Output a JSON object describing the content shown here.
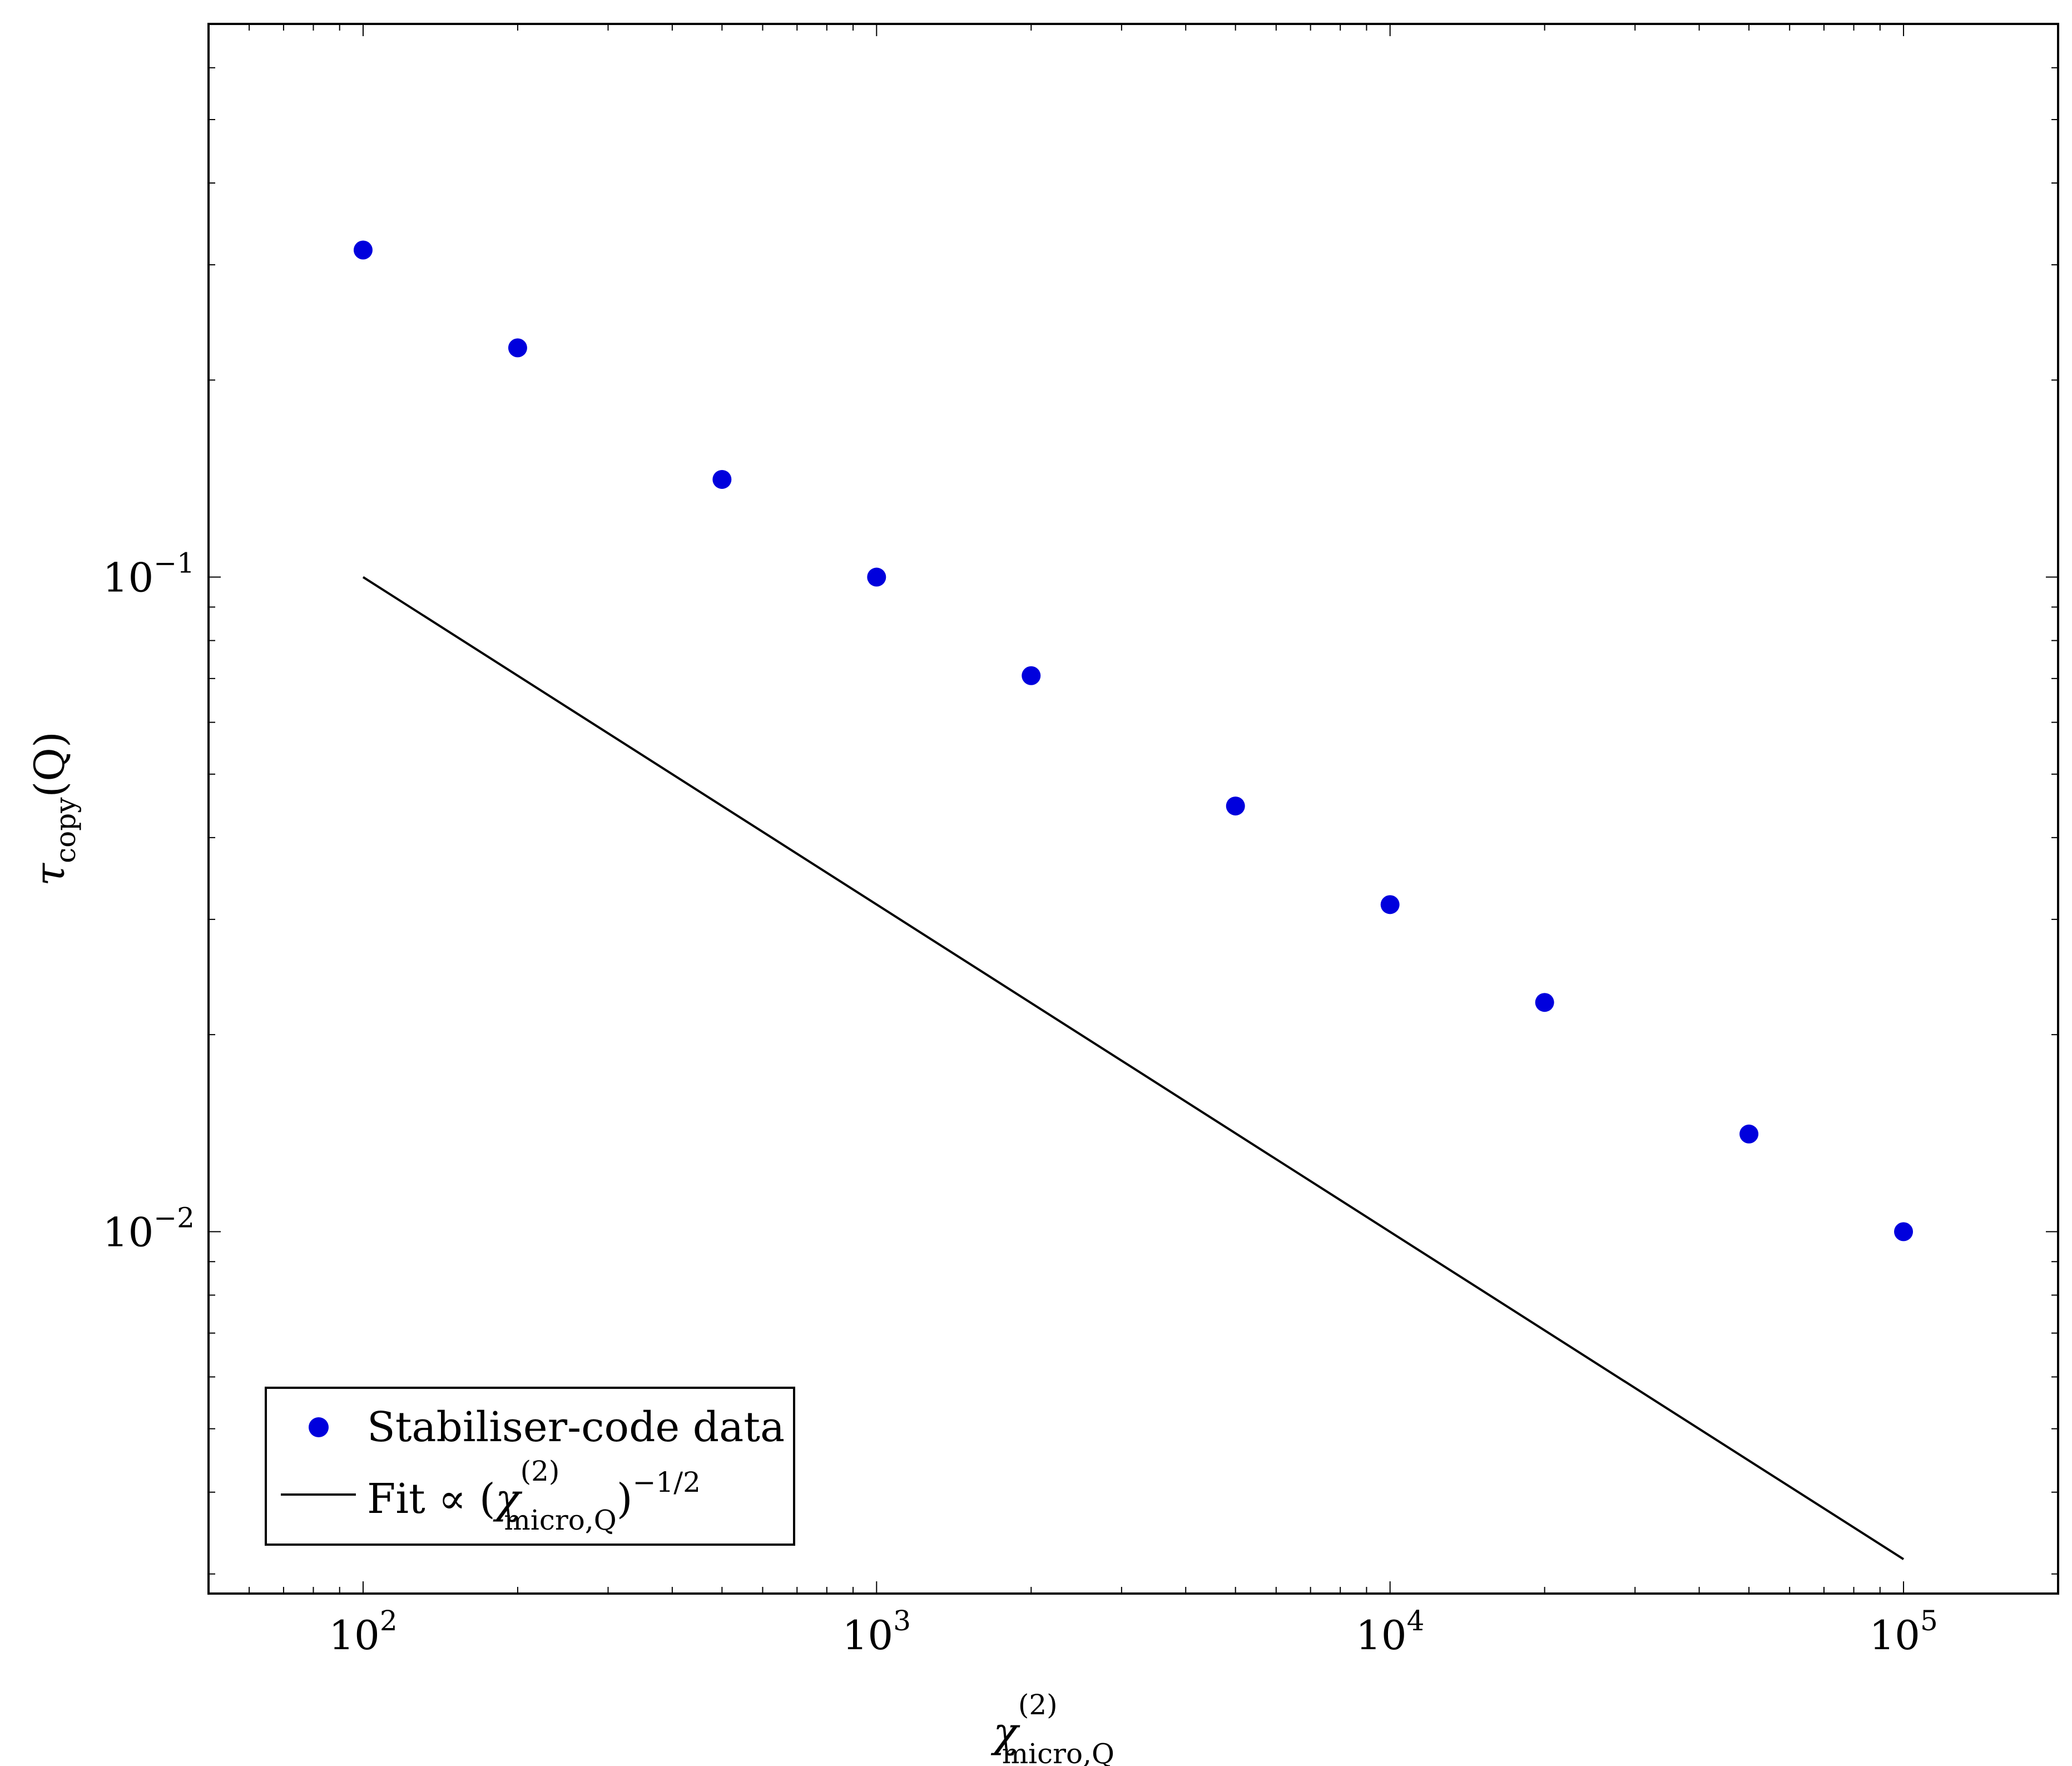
{
  "chart_data": {
    "type": "scatter",
    "x_scale": "log",
    "y_scale": "log",
    "xlim": [
      50,
      200000
    ],
    "ylim": [
      0.0028,
      0.7
    ],
    "xlabel": {
      "symbol": "χ",
      "sup": "(2)",
      "sub": "micro,Q"
    },
    "ylabel": {
      "symbol": "τ",
      "sub": "copy",
      "arg": "(Q)"
    },
    "x_ticks": [
      {
        "value": 100,
        "base": "10",
        "exp": "2"
      },
      {
        "value": 1000,
        "base": "10",
        "exp": "3"
      },
      {
        "value": 10000,
        "base": "10",
        "exp": "4"
      },
      {
        "value": 100000,
        "base": "10",
        "exp": "5"
      }
    ],
    "y_ticks": [
      {
        "value": 0.1,
        "base": "10",
        "exp": "−1"
      },
      {
        "value": 0.01,
        "base": "10",
        "exp": "−2"
      }
    ],
    "grid": false,
    "legend_position": "bottom-left",
    "series": [
      {
        "name": "Stabiliser-code data",
        "kind": "scatter",
        "color": "#0000dd",
        "x": [
          100,
          200,
          500,
          1000,
          2000,
          5000,
          10000,
          20000,
          50000,
          100000
        ],
        "y": [
          0.316,
          0.224,
          0.141,
          0.1,
          0.0707,
          0.0447,
          0.0316,
          0.0224,
          0.0141,
          0.01
        ]
      },
      {
        "name": "Fit",
        "kind": "line",
        "color": "#000000",
        "x": [
          100,
          100000
        ],
        "y": [
          0.1,
          0.00316
        ]
      }
    ],
    "legend": {
      "data_label": "Stabiliser-code data",
      "fit_label": {
        "prefix": "Fit ∝ (",
        "symbol": "χ",
        "sup": "(2)",
        "sub": "micro,Q",
        "suffix": ")",
        "power": "−1/2"
      }
    }
  }
}
